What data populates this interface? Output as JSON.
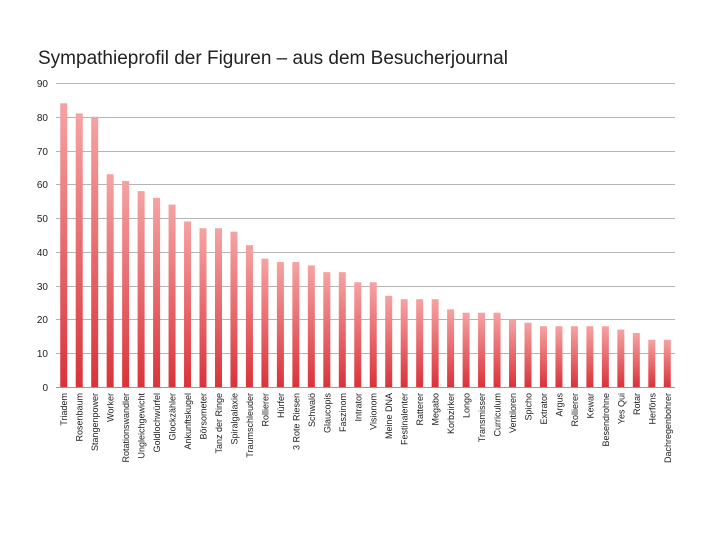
{
  "chart_data": {
    "type": "bar",
    "title": "Sympathieprofil der Figuren – aus dem Besucherjournal",
    "xlabel": "",
    "ylabel": "",
    "ylim": [
      0,
      90
    ],
    "yticks": [
      0,
      10,
      20,
      30,
      40,
      50,
      60,
      70,
      80,
      90
    ],
    "grid": true,
    "legend": "none",
    "bar_color_top": "#f6a3a3",
    "bar_color_bottom": "#d9333a",
    "categories": [
      "Triadem",
      "Rosenbaum",
      "Stangenpower",
      "Worker",
      "Rotationswandler",
      "Ungleichgewicht",
      "Goldlochwürfel",
      "Glockzähler",
      "Ankunftskugel",
      "Börsometer",
      "Tanz der Ringe",
      "Spiralgalaxie",
      "Traumschleuder",
      "Rollierer",
      "Hürfer",
      "3 Rote Riesen",
      "Schwalö",
      "Glaucopis",
      "Faszinom",
      "Intrator",
      "Visionom",
      "Meine DNA",
      "Festinalenter",
      "Ratterer",
      "Megabo",
      "Korbzirker",
      "Longo",
      "Transmisser",
      "Curriculum",
      "Ventiloren",
      "Spicho",
      "Extrator",
      "Argus",
      "Rollierer",
      "Kewar",
      "Besendrohne",
      "Yes  Qui",
      "Rotar",
      "Herföns",
      "Dachregenbohrer"
    ],
    "values": [
      84,
      81,
      80,
      63,
      61,
      58,
      56,
      54,
      49,
      47,
      47,
      46,
      42,
      38,
      37,
      37,
      36,
      34,
      34,
      31,
      31,
      27,
      26,
      26,
      26,
      23,
      22,
      22,
      22,
      20,
      19,
      18,
      18,
      18,
      18,
      18,
      17,
      16,
      14,
      14
    ]
  }
}
